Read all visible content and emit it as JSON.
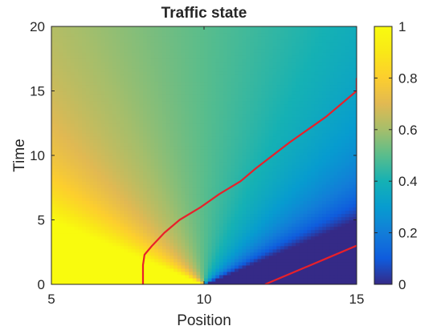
{
  "chart_data": {
    "type": "heatmap",
    "title": "Traffic state",
    "xlabel": "Position",
    "ylabel": "Time",
    "xlim": [
      5,
      15
    ],
    "ylim": [
      0,
      20
    ],
    "x_ticks": [
      "5",
      "10",
      "15"
    ],
    "y_ticks": [
      "0",
      "5",
      "10",
      "15",
      "20"
    ],
    "colorbar": {
      "range": [
        0,
        1
      ],
      "ticks": [
        "0",
        "0.2",
        "0.4",
        "0.6",
        "0.8",
        "1"
      ],
      "colormap": "parula"
    },
    "initial_density": {
      "left_of_x10": 1,
      "right_of_x10": 0
    },
    "rarefaction_fan_origin": {
      "x": 10,
      "t": 0
    },
    "trajectories": [
      {
        "color": "#e8202a",
        "points": [
          [
            8.0,
            0
          ],
          [
            8.0,
            1.5
          ],
          [
            8.05,
            2.3
          ],
          [
            8.3,
            3.0
          ],
          [
            8.7,
            4.0
          ],
          [
            9.2,
            5.0
          ],
          [
            9.9,
            6.0
          ],
          [
            10.5,
            7.0
          ],
          [
            11.2,
            8.0
          ],
          [
            11.7,
            9.0
          ],
          [
            12.25,
            10.0
          ],
          [
            12.8,
            11.0
          ],
          [
            13.4,
            12.0
          ],
          [
            14.0,
            13.0
          ],
          [
            14.5,
            14.0
          ],
          [
            15.0,
            15.0
          ],
          [
            15.0,
            16.0
          ]
        ]
      },
      {
        "color": "#e8202a",
        "points": [
          [
            12.0,
            0
          ],
          [
            13.0,
            1.0
          ],
          [
            14.0,
            2.0
          ],
          [
            15.0,
            3.0
          ]
        ]
      }
    ]
  }
}
